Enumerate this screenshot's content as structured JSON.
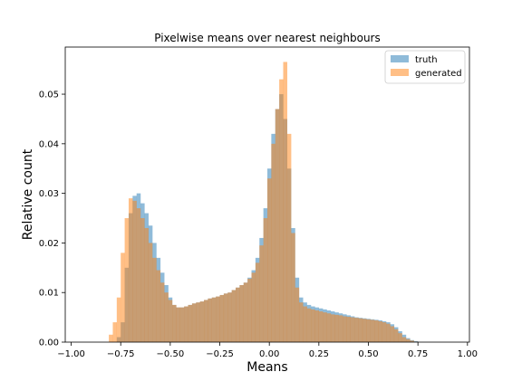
{
  "chart_data": {
    "type": "bar",
    "title": "Pixelwise means over nearest neighbours",
    "xlabel": "Means",
    "ylabel": "Relative count",
    "xlim": [
      -1.03,
      1.01
    ],
    "ylim": [
      0,
      0.0595
    ],
    "xticks": [
      -1.0,
      -0.75,
      -0.5,
      -0.25,
      0.0,
      0.25,
      0.5,
      0.75,
      1.0
    ],
    "xtick_labels": [
      "−1.00",
      "−0.75",
      "−0.50",
      "−0.25",
      "0.00",
      "0.25",
      "0.50",
      "0.75",
      "1.00"
    ],
    "yticks": [
      0.0,
      0.01,
      0.02,
      0.03,
      0.04,
      0.05
    ],
    "ytick_labels": [
      "0.00",
      "0.01",
      "0.02",
      "0.03",
      "0.04",
      "0.05"
    ],
    "legend_position": "top-right",
    "grid": false,
    "series": [
      {
        "name": "truth",
        "color": "#1f77b4",
        "opacity": 0.5,
        "points": [
          [
            -0.8,
            0.0
          ],
          [
            -0.76,
            0.001
          ],
          [
            -0.74,
            0.004
          ],
          [
            -0.72,
            0.015
          ],
          [
            -0.7,
            0.026
          ],
          [
            -0.68,
            0.0295
          ],
          [
            -0.66,
            0.03
          ],
          [
            -0.64,
            0.028
          ],
          [
            -0.62,
            0.026
          ],
          [
            -0.6,
            0.0235
          ],
          [
            -0.58,
            0.02
          ],
          [
            -0.56,
            0.017
          ],
          [
            -0.54,
            0.014
          ],
          [
            -0.52,
            0.0115
          ],
          [
            -0.5,
            0.009
          ],
          [
            -0.48,
            0.0075
          ],
          [
            -0.46,
            0.007
          ],
          [
            -0.44,
            0.007
          ],
          [
            -0.42,
            0.0072
          ],
          [
            -0.4,
            0.0075
          ],
          [
            -0.38,
            0.0078
          ],
          [
            -0.36,
            0.008
          ],
          [
            -0.34,
            0.0082
          ],
          [
            -0.32,
            0.0085
          ],
          [
            -0.3,
            0.0088
          ],
          [
            -0.28,
            0.009
          ],
          [
            -0.26,
            0.0092
          ],
          [
            -0.24,
            0.0095
          ],
          [
            -0.22,
            0.0098
          ],
          [
            -0.2,
            0.01
          ],
          [
            -0.18,
            0.0105
          ],
          [
            -0.16,
            0.011
          ],
          [
            -0.14,
            0.0115
          ],
          [
            -0.12,
            0.012
          ],
          [
            -0.1,
            0.013
          ],
          [
            -0.08,
            0.0145
          ],
          [
            -0.06,
            0.017
          ],
          [
            -0.04,
            0.021
          ],
          [
            -0.02,
            0.027
          ],
          [
            0.0,
            0.035
          ],
          [
            0.02,
            0.042
          ],
          [
            0.04,
            0.047
          ],
          [
            0.06,
            0.05
          ],
          [
            0.08,
            0.045
          ],
          [
            0.1,
            0.035
          ],
          [
            0.12,
            0.023
          ],
          [
            0.14,
            0.013
          ],
          [
            0.16,
            0.009
          ],
          [
            0.18,
            0.008
          ],
          [
            0.2,
            0.0075
          ],
          [
            0.22,
            0.0072
          ],
          [
            0.24,
            0.007
          ],
          [
            0.26,
            0.0068
          ],
          [
            0.28,
            0.0066
          ],
          [
            0.3,
            0.0064
          ],
          [
            0.32,
            0.0062
          ],
          [
            0.34,
            0.006
          ],
          [
            0.36,
            0.0058
          ],
          [
            0.38,
            0.0056
          ],
          [
            0.4,
            0.0054
          ],
          [
            0.42,
            0.0052
          ],
          [
            0.44,
            0.005
          ],
          [
            0.46,
            0.0049
          ],
          [
            0.48,
            0.0048
          ],
          [
            0.5,
            0.0047
          ],
          [
            0.52,
            0.0046
          ],
          [
            0.54,
            0.0045
          ],
          [
            0.56,
            0.0044
          ],
          [
            0.58,
            0.0042
          ],
          [
            0.6,
            0.004
          ],
          [
            0.62,
            0.0036
          ],
          [
            0.64,
            0.003
          ],
          [
            0.66,
            0.0022
          ],
          [
            0.68,
            0.0015
          ],
          [
            0.7,
            0.0008
          ],
          [
            0.72,
            0.0004
          ],
          [
            0.74,
            0.0002
          ],
          [
            0.76,
            0.0
          ]
        ]
      },
      {
        "name": "generated",
        "color": "#ff7f0e",
        "opacity": 0.5,
        "points": [
          [
            -0.82,
            0.0
          ],
          [
            -0.8,
            0.0015
          ],
          [
            -0.78,
            0.004
          ],
          [
            -0.76,
            0.009
          ],
          [
            -0.74,
            0.018
          ],
          [
            -0.72,
            0.025
          ],
          [
            -0.7,
            0.029
          ],
          [
            -0.68,
            0.0285
          ],
          [
            -0.66,
            0.027
          ],
          [
            -0.64,
            0.025
          ],
          [
            -0.62,
            0.023
          ],
          [
            -0.6,
            0.02
          ],
          [
            -0.58,
            0.017
          ],
          [
            -0.56,
            0.0145
          ],
          [
            -0.54,
            0.012
          ],
          [
            -0.52,
            0.01
          ],
          [
            -0.5,
            0.0085
          ],
          [
            -0.48,
            0.0075
          ],
          [
            -0.46,
            0.007
          ],
          [
            -0.44,
            0.007
          ],
          [
            -0.42,
            0.0072
          ],
          [
            -0.4,
            0.0075
          ],
          [
            -0.38,
            0.0078
          ],
          [
            -0.36,
            0.008
          ],
          [
            -0.34,
            0.0082
          ],
          [
            -0.32,
            0.0085
          ],
          [
            -0.3,
            0.0088
          ],
          [
            -0.28,
            0.009
          ],
          [
            -0.26,
            0.0092
          ],
          [
            -0.24,
            0.0095
          ],
          [
            -0.22,
            0.0098
          ],
          [
            -0.2,
            0.01
          ],
          [
            -0.18,
            0.0105
          ],
          [
            -0.16,
            0.011
          ],
          [
            -0.14,
            0.0115
          ],
          [
            -0.12,
            0.012
          ],
          [
            -0.1,
            0.0128
          ],
          [
            -0.08,
            0.014
          ],
          [
            -0.06,
            0.016
          ],
          [
            -0.04,
            0.0195
          ],
          [
            -0.02,
            0.025
          ],
          [
            0.0,
            0.033
          ],
          [
            0.02,
            0.04
          ],
          [
            0.04,
            0.047
          ],
          [
            0.06,
            0.053
          ],
          [
            0.08,
            0.0565
          ],
          [
            0.1,
            0.042
          ],
          [
            0.12,
            0.022
          ],
          [
            0.14,
            0.011
          ],
          [
            0.16,
            0.008
          ],
          [
            0.18,
            0.0072
          ],
          [
            0.2,
            0.0068
          ],
          [
            0.22,
            0.0066
          ],
          [
            0.24,
            0.0064
          ],
          [
            0.26,
            0.0062
          ],
          [
            0.28,
            0.006
          ],
          [
            0.3,
            0.0058
          ],
          [
            0.32,
            0.0056
          ],
          [
            0.34,
            0.0055
          ],
          [
            0.36,
            0.0054
          ],
          [
            0.38,
            0.0052
          ],
          [
            0.4,
            0.0051
          ],
          [
            0.42,
            0.005
          ],
          [
            0.44,
            0.0049
          ],
          [
            0.46,
            0.0048
          ],
          [
            0.48,
            0.0047
          ],
          [
            0.5,
            0.0046
          ],
          [
            0.52,
            0.0045
          ],
          [
            0.54,
            0.0044
          ],
          [
            0.56,
            0.0042
          ],
          [
            0.58,
            0.004
          ],
          [
            0.6,
            0.0037
          ],
          [
            0.62,
            0.0032
          ],
          [
            0.64,
            0.0026
          ],
          [
            0.66,
            0.0018
          ],
          [
            0.68,
            0.001
          ],
          [
            0.7,
            0.0006
          ],
          [
            0.72,
            0.0003
          ],
          [
            0.74,
            0.0001
          ],
          [
            0.76,
            0.0
          ]
        ]
      }
    ]
  }
}
